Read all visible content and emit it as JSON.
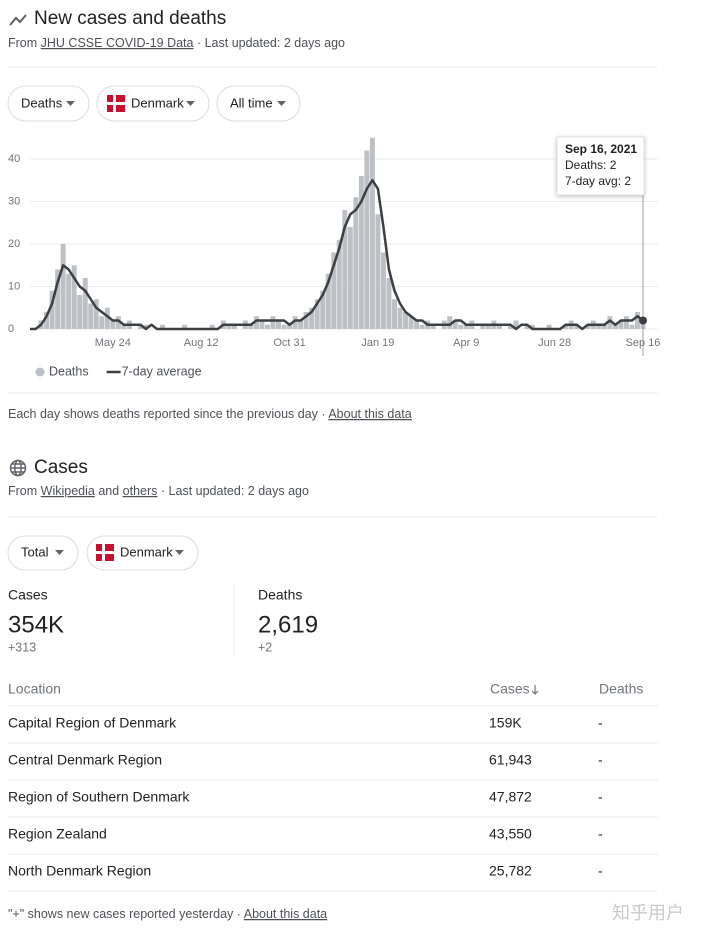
{
  "header": {
    "title": "New cases and deaths",
    "source_prefix": "From",
    "source_link": "JHU CSSE COVID-19 Data",
    "updated": "· Last updated: 2 days ago"
  },
  "filters": [
    "Deaths",
    "Denmark",
    "All time"
  ],
  "chart_data": {
    "type": "bar",
    "grid": true,
    "categories": [
      null,
      null,
      null,
      null,
      null,
      null,
      null,
      null,
      null,
      null,
      null,
      null,
      null,
      null,
      null,
      "May 24",
      null,
      null,
      null,
      null,
      null,
      null,
      null,
      null,
      null,
      null,
      null,
      null,
      null,
      null,
      null,
      "Aug 12",
      null,
      null,
      null,
      null,
      null,
      null,
      null,
      null,
      null,
      null,
      null,
      null,
      null,
      null,
      null,
      "Oct 31",
      null,
      null,
      null,
      null,
      null,
      null,
      null,
      null,
      null,
      null,
      null,
      null,
      null,
      null,
      null,
      "Jan 19",
      null,
      null,
      null,
      null,
      null,
      null,
      null,
      null,
      null,
      null,
      null,
      null,
      null,
      null,
      null,
      "Apr 9",
      null,
      null,
      null,
      null,
      null,
      null,
      null,
      null,
      null,
      null,
      null,
      null,
      null,
      null,
      null,
      "Jun 28",
      null,
      null,
      null,
      null,
      null,
      null,
      null,
      null,
      null,
      null,
      null,
      null,
      null,
      null,
      null,
      "Sep 16"
    ],
    "series": [
      {
        "name": "Deaths",
        "type": "bar",
        "color": "#bdc1c6",
        "values": [
          0,
          0,
          2,
          4,
          9,
          14,
          20,
          13,
          15,
          8,
          12,
          6,
          7,
          3,
          5,
          2,
          3,
          1,
          2,
          0,
          1,
          1,
          0,
          0,
          1,
          0,
          0,
          0,
          1,
          0,
          0,
          0,
          0,
          1,
          0,
          2,
          1,
          1,
          0,
          2,
          1,
          3,
          2,
          1,
          3,
          2,
          1,
          1,
          3,
          2,
          4,
          5,
          7,
          9,
          13,
          18,
          21,
          28,
          24,
          31,
          36,
          42,
          45,
          27,
          18,
          12,
          7,
          5,
          4,
          3,
          2,
          1,
          2,
          1,
          0,
          2,
          3,
          2,
          1,
          1,
          2,
          0,
          1,
          1,
          2,
          1,
          0,
          1,
          2,
          0,
          1,
          1,
          0,
          0,
          1,
          0,
          0,
          1,
          2,
          1,
          0,
          1,
          2,
          1,
          1,
          3,
          1,
          2,
          3,
          1,
          4,
          2
        ]
      },
      {
        "name": "7-day average",
        "type": "line",
        "color": "#3c4043",
        "values": [
          0,
          0,
          1,
          3,
          6,
          11,
          15,
          14,
          12,
          10,
          9,
          7,
          5,
          4,
          3,
          2,
          2,
          1,
          1,
          1,
          1,
          0,
          1,
          0,
          0,
          0,
          0,
          0,
          0,
          0,
          0,
          0,
          0,
          0,
          0,
          1,
          1,
          1,
          1,
          1,
          1,
          2,
          2,
          2,
          2,
          2,
          2,
          1,
          2,
          2,
          3,
          4,
          6,
          8,
          11,
          15,
          19,
          24,
          27,
          28,
          30,
          33,
          35,
          33,
          24,
          14,
          9,
          6,
          4,
          3,
          2,
          2,
          1,
          1,
          1,
          1,
          1,
          2,
          2,
          1,
          1,
          1,
          1,
          1,
          1,
          1,
          1,
          1,
          0,
          1,
          1,
          0,
          0,
          0,
          0,
          0,
          0,
          1,
          1,
          1,
          0,
          1,
          1,
          1,
          1,
          2,
          1,
          2,
          2,
          2,
          3,
          2
        ]
      }
    ],
    "ylim": [
      0,
      46
    ],
    "yticks": [
      0,
      10,
      20,
      30,
      40
    ],
    "tooltip": {
      "date": "Sep 16, 2021",
      "lines": [
        "Deaths: 2",
        "7-day avg: 2"
      ]
    }
  },
  "chart_note": "Each day shows deaths reported since the previous day",
  "about": "About this data",
  "cases": {
    "title": "Cases",
    "source_prefix": "From",
    "link1": "Wikipedia",
    "and": "and",
    "link2": "others",
    "updated": "· Last updated: 2 days ago",
    "filters": [
      "Total",
      "Denmark"
    ],
    "stats": [
      {
        "label": "Cases",
        "value": "354K",
        "change": "+313"
      },
      {
        "label": "Deaths",
        "value": "2,619",
        "change": "+2"
      }
    ],
    "table": {
      "columns": [
        "Location",
        "Cases",
        "Deaths"
      ],
      "rows": [
        [
          "Capital Region of Denmark",
          "159K",
          "-"
        ],
        [
          "Central Denmark Region",
          "61,943",
          "-"
        ],
        [
          "Region of Southern Denmark",
          "47,872",
          "-"
        ],
        [
          "Region Zealand",
          "43,550",
          "-"
        ],
        [
          "North Denmark Region",
          "25,782",
          "-"
        ]
      ]
    },
    "footnote": "\"+\" shows new cases reported yesterday",
    "about": "About this data"
  },
  "watermark": "知乎用户"
}
